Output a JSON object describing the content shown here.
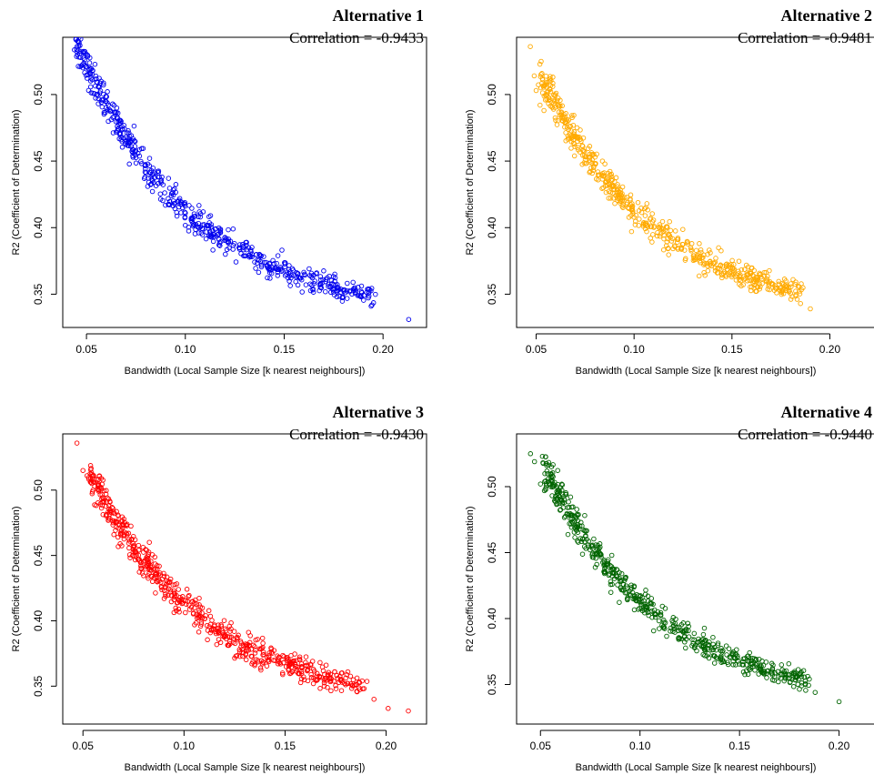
{
  "chart_data": [
    {
      "type": "scatter",
      "title": "Alternative 1",
      "subtitle": "Correlation = -0.9433",
      "xlabel": "Bandwidth (Local Sample Size [k nearest neighbours])",
      "ylabel": "R2 (Coefficient of Determination)",
      "xticks": [
        "0.05",
        "0.10",
        "0.15",
        "0.20"
      ],
      "yticks": [
        "0.35",
        "0.40",
        "0.45",
        "0.50"
      ],
      "xlim": [
        0.038,
        0.222
      ],
      "ylim": [
        0.325,
        0.543
      ],
      "color": "#0000ee",
      "trend": {
        "a": 0.0925,
        "b": 0.48,
        "c": 0.2275,
        "d": 0.52,
        "e": 0.012,
        "x_from": 0.045,
        "x_to": 0.195,
        "n": 600
      },
      "points": [
        [
          0.045,
          0.534
        ],
        [
          0.056,
          0.497
        ],
        [
          0.058,
          0.496
        ],
        [
          0.061,
          0.492
        ],
        [
          0.062,
          0.488
        ],
        [
          0.213,
          0.331
        ],
        [
          0.194,
          0.341
        ]
      ]
    },
    {
      "type": "scatter",
      "title": "Alternative 2",
      "subtitle": "Correlation = -0.9481",
      "xlabel": "Bandwidth (Local Sample Size [k nearest neighbours])",
      "ylabel": "R2 (Coefficient of Determination)",
      "xticks": [
        "0.05",
        "0.10",
        "0.15",
        "0.20"
      ],
      "yticks": [
        "0.35",
        "0.40",
        "0.45",
        "0.50"
      ],
      "xlim": [
        0.04,
        0.223
      ],
      "ylim": [
        0.325,
        0.543
      ],
      "color": "#ffaa00",
      "trend": {
        "a": 0.0925,
        "b": 0.4,
        "c": 0.2275,
        "d": 0.8,
        "e": 0.012,
        "x_from": 0.053,
        "x_to": 0.185,
        "n": 600
      },
      "points": [
        [
          0.047,
          0.536
        ],
        [
          0.049,
          0.514
        ],
        [
          0.05,
          0.503
        ],
        [
          0.052,
          0.492
        ],
        [
          0.054,
          0.488
        ],
        [
          0.19,
          0.339
        ],
        [
          0.185,
          0.343
        ]
      ]
    },
    {
      "type": "scatter",
      "title": "Alternative 3",
      "subtitle": "Correlation = -0.9430",
      "xlabel": "Bandwidth (Local Sample Size [k nearest neighbours])",
      "ylabel": "R2 (Coefficient of Determination)",
      "xticks": [
        "0.05",
        "0.10",
        "0.15",
        "0.20"
      ],
      "yticks": [
        "0.35",
        "0.40",
        "0.45",
        "0.50"
      ],
      "xlim": [
        0.04,
        0.22
      ],
      "ylim": [
        0.321,
        0.543
      ],
      "color": "#ff0000",
      "trend": {
        "a": 0.0925,
        "b": 0.4,
        "c": 0.2275,
        "d": 0.8,
        "e": 0.012,
        "x_from": 0.053,
        "x_to": 0.188,
        "n": 620
      },
      "points": [
        [
          0.047,
          0.536
        ],
        [
          0.05,
          0.515
        ],
        [
          0.052,
          0.511
        ],
        [
          0.055,
          0.5
        ],
        [
          0.211,
          0.331
        ],
        [
          0.201,
          0.333
        ],
        [
          0.194,
          0.34
        ]
      ]
    },
    {
      "type": "scatter",
      "title": "Alternative 4",
      "subtitle": "Correlation = -0.9440",
      "xlabel": "Bandwidth (Local Sample Size [k nearest neighbours])",
      "ylabel": "R2 (Coefficient of Determination)",
      "xticks": [
        "0.05",
        "0.10",
        "0.15",
        "0.20"
      ],
      "yticks": [
        "0.35",
        "0.40",
        "0.45",
        "0.50"
      ],
      "xlim": [
        0.038,
        0.218
      ],
      "ylim": [
        0.32,
        0.54
      ],
      "color": "#006400",
      "trend": {
        "a": 0.0925,
        "b": 0.28,
        "c": 0.2275,
        "d": 1.0,
        "e": 0.011,
        "x_from": 0.052,
        "x_to": 0.185,
        "n": 600
      },
      "points": [
        [
          0.045,
          0.525
        ],
        [
          0.047,
          0.519
        ],
        [
          0.05,
          0.502
        ],
        [
          0.052,
          0.497
        ],
        [
          0.2,
          0.337
        ],
        [
          0.188,
          0.344
        ]
      ]
    }
  ]
}
